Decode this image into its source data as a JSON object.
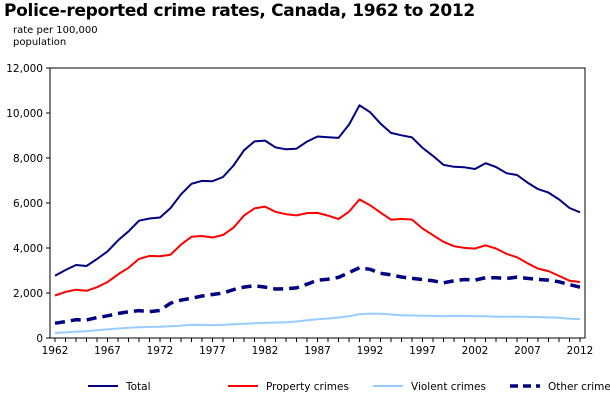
{
  "chart_data": {
    "type": "line",
    "title": "Police-reported crime rates, Canada, 1962 to 2012",
    "ylabel_line1": "rate per 100,000",
    "ylabel_line2": "population",
    "xlabel": "",
    "ylim": [
      0,
      12000
    ],
    "yticks": [
      "0",
      "2,000",
      "4,000",
      "6,000",
      "8,000",
      "10,000",
      "12,000"
    ],
    "ytick_values": [
      0,
      2000,
      4000,
      6000,
      8000,
      10000,
      12000
    ],
    "xticks": [
      "1962",
      "1967",
      "1972",
      "1977",
      "1982",
      "1987",
      "1992",
      "1997",
      "2002",
      "2007",
      "2012"
    ],
    "x_start": 1962,
    "x_end": 2012,
    "grid": false,
    "legend_position": "bottom",
    "series": [
      {
        "name": "Total",
        "color": "#000080",
        "dashed": false,
        "values": [
          2771,
          3022,
          3245,
          3199,
          3511,
          3850,
          4336,
          4737,
          5212,
          5311,
          5355,
          5773,
          6388,
          6852,
          6984,
          6971,
          7154,
          7666,
          8343,
          8736,
          8773,
          8470,
          8387,
          8413,
          8727,
          8957,
          8919,
          8892,
          9485,
          10342,
          10040,
          9531,
          9114,
          9008,
          8915,
          8453,
          8093,
          7694,
          7607,
          7587,
          7512,
          7770,
          7600,
          7325,
          7245,
          6908,
          6617,
          6461,
          6159,
          5779,
          5588
        ]
      },
      {
        "name": "Property crimes",
        "color": "#ff0000",
        "dashed": false,
        "values": [
          1891,
          2047,
          2146,
          2099,
          2258,
          2484,
          2826,
          3120,
          3515,
          3649,
          3634,
          3704,
          4151,
          4498,
          4533,
          4466,
          4579,
          4903,
          5444,
          5759,
          5840,
          5608,
          5501,
          5451,
          5550,
          5560,
          5439,
          5289,
          5612,
          6160,
          5904,
          5575,
          5257,
          5292,
          5264,
          4867,
          4570,
          4276,
          4081,
          4004,
          3973,
          4122,
          3976,
          3737,
          3588,
          3321,
          3085,
          2975,
          2760,
          2547,
          2490
        ]
      },
      {
        "name": "Violent crimes",
        "color": "#99ccff",
        "dashed": false,
        "values": [
          221,
          249,
          284,
          299,
          347,
          381,
          423,
          453,
          481,
          492,
          497,
          524,
          553,
          585,
          584,
          572,
          580,
          610,
          636,
          654,
          671,
          686,
          701,
          735,
          785,
          829,
          868,
          909,
          967,
          1059,
          1084,
          1082,
          1046,
          1007,
          1000,
          990,
          981,
          966,
          985,
          982,
          967,
          966,
          946,
          944,
          952,
          936,
          929,
          914,
          900,
          858,
          840
        ]
      },
      {
        "name": "Other crimes",
        "color": "#000080",
        "dashed": true,
        "values": [
          659,
          726,
          815,
          801,
          906,
          985,
          1087,
          1164,
          1216,
          1170,
          1224,
          1545,
          1684,
          1769,
          1867,
          1933,
          1995,
          2153,
          2263,
          2323,
          2262,
          2176,
          2185,
          2227,
          2392,
          2568,
          2612,
          2694,
          2906,
          3123,
          3052,
          2874,
          2811,
          2709,
          2651,
          2596,
          2542,
          2452,
          2541,
          2601,
          2572,
          2682,
          2678,
          2644,
          2705,
          2651,
          2603,
          2572,
          2499,
          2374,
          2258
        ]
      }
    ]
  }
}
